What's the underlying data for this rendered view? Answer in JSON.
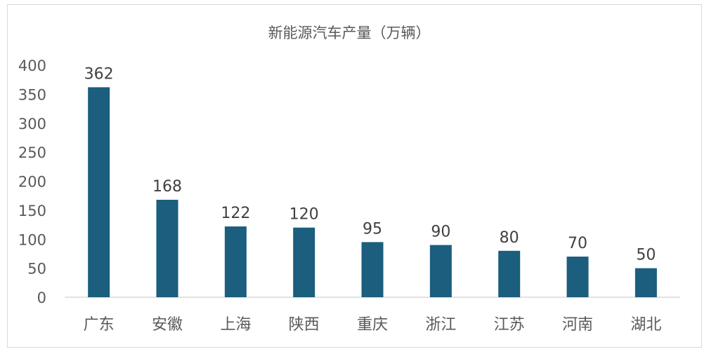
{
  "chart_data": {
    "type": "bar",
    "title": "新能源汽车产量（万辆）",
    "categories": [
      "广东",
      "安徽",
      "上海",
      "陕西",
      "重庆",
      "浙江",
      "江苏",
      "河南",
      "湖北"
    ],
    "values": [
      362,
      168,
      122,
      120,
      95,
      90,
      80,
      70,
      50
    ],
    "ylim": [
      0,
      400
    ],
    "yticks": [
      0,
      50,
      100,
      150,
      200,
      250,
      300,
      350,
      400
    ],
    "grid": false,
    "legend": "none",
    "data_labels": true,
    "bar_color": "#1b5e7e",
    "axis_color": "#d9d9d9",
    "text_color": "#595959"
  }
}
